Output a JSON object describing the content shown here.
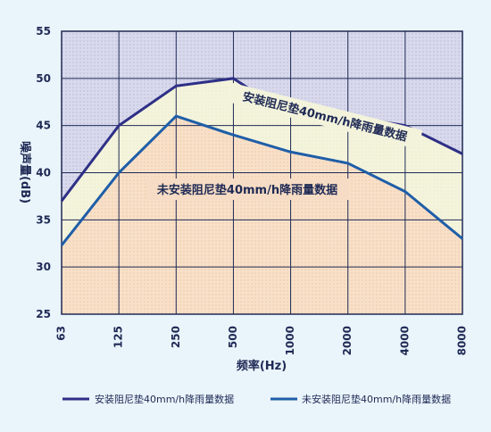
{
  "chart_data": {
    "type": "area",
    "title": "",
    "xlabel": "频率(Hz)",
    "ylabel": "噪声量(dB)",
    "categories": [
      "63",
      "125",
      "250",
      "500",
      "1000",
      "2000",
      "4000",
      "8000"
    ],
    "ylim": [
      25,
      55
    ],
    "yticks": [
      25,
      30,
      35,
      40,
      45,
      50,
      55
    ],
    "grid": true,
    "legend_position": "bottom",
    "series": [
      {
        "name": "安装阻尼垫40mm/h降雨量数据",
        "color": "#2e2f86",
        "fill": "#f3f3dc",
        "values": [
          37,
          45,
          49.2,
          50,
          46,
          46,
          45,
          42
        ]
      },
      {
        "name": "未安装阻尼垫40mm/h降雨量数据",
        "color": "#1f5ea8",
        "fill": "#f6dcc4",
        "values": [
          32.3,
          40,
          46,
          44,
          42.2,
          41,
          38,
          33
        ]
      }
    ],
    "annotations": [
      {
        "text": "安装阻尼垫40mm/h降雨量数据"
      },
      {
        "text": "未安装阻尼垫40mm/h降雨量数据"
      }
    ]
  }
}
